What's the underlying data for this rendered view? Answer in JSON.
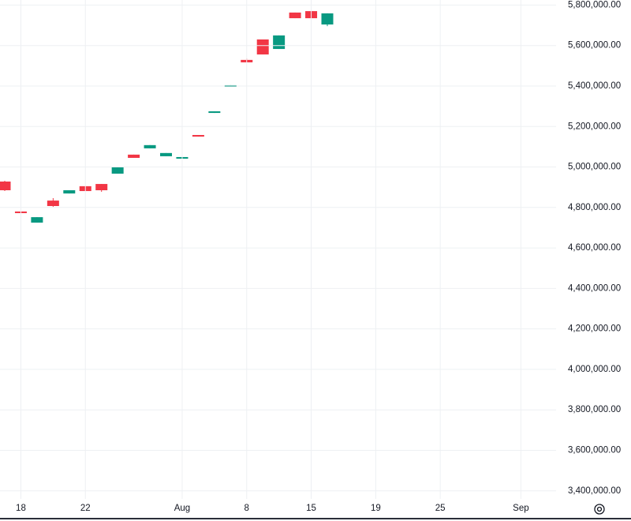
{
  "chart_data": {
    "type": "candlestick",
    "categories": [
      null,
      "18",
      null,
      null,
      null,
      "22",
      null,
      null,
      null,
      null,
      null,
      "Aug",
      null,
      null,
      null,
      "8",
      null,
      null,
      null,
      "15",
      null,
      null,
      null,
      "19",
      null,
      null,
      null,
      "25",
      null,
      null,
      null,
      null,
      "Sep",
      null
    ],
    "series": [
      {
        "up_color": "#089981",
        "down_color": "#f23645",
        "open": [
          4928000,
          4780000,
          4725000,
          4834000,
          4869000,
          4905000,
          4916000,
          4967000,
          5061000,
          5092000,
          5053000,
          5041000,
          5158000,
          5267000,
          5396000,
          5529000,
          5630000,
          5583000,
          5763000,
          5770000,
          5704000,
          null,
          null,
          null,
          null,
          null,
          null,
          null,
          null,
          null,
          null,
          null,
          null,
          null
        ],
        "high": [
          4932000,
          4780000,
          4752000,
          4846000,
          4885000,
          4905000,
          4916000,
          4998000,
          5061000,
          5108000,
          5069000,
          5049000,
          5158000,
          5275000,
          5404000,
          5536000,
          5630000,
          5650000,
          5763000,
          5770000,
          5759000,
          null,
          null,
          null,
          null,
          null,
          null,
          null,
          null,
          null,
          null,
          null,
          null,
          null
        ],
        "low": [
          4881000,
          4772000,
          4725000,
          4803000,
          4869000,
          4881000,
          4877000,
          4967000,
          5045000,
          5092000,
          5053000,
          5041000,
          5150000,
          5267000,
          5396000,
          5517000,
          5556000,
          5583000,
          5735000,
          5735000,
          5696000,
          null,
          null,
          null,
          null,
          null,
          null,
          null,
          null,
          null,
          null,
          null,
          null,
          null
        ],
        "close": [
          4885000,
          4772000,
          4752000,
          4807000,
          4885000,
          4881000,
          4885000,
          4998000,
          5045000,
          5108000,
          5069000,
          5049000,
          5150000,
          5275000,
          5404000,
          5517000,
          5556000,
          5650000,
          5735000,
          5735000,
          5759000,
          null,
          null,
          null,
          null,
          null,
          null,
          null,
          null,
          null,
          null,
          null,
          null,
          null
        ]
      }
    ],
    "ylim": [
      3360000,
      5825000
    ],
    "yticks": [
      {
        "value": 3400000,
        "label": "3,400,000.00"
      },
      {
        "value": 3600000,
        "label": "3,600,000.00"
      },
      {
        "value": 3800000,
        "label": "3,800,000.00"
      },
      {
        "value": 4000000,
        "label": "4,000,000.00"
      },
      {
        "value": 4200000,
        "label": "4,200,000.00"
      },
      {
        "value": 4400000,
        "label": "4,400,000.00"
      },
      {
        "value": 4600000,
        "label": "4,600,000.00"
      },
      {
        "value": 4800000,
        "label": "4,800,000.00"
      },
      {
        "value": 5000000,
        "label": "5,000,000.00"
      },
      {
        "value": 5200000,
        "label": "5,200,000.00"
      },
      {
        "value": 5400000,
        "label": "5,400,000.00"
      },
      {
        "value": 5600000,
        "label": "5,600,000.00"
      },
      {
        "value": 5800000,
        "label": "5,800,000.00"
      }
    ],
    "grid": true
  }
}
